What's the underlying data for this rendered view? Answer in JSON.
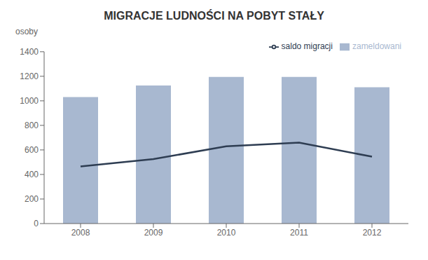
{
  "chart_data": {
    "type": "bar",
    "title": "MIGRACJE LUDNOŚCI NA POBYT STAŁY",
    "ylabel": "osoby",
    "categories": [
      "2008",
      "2009",
      "2010",
      "2011",
      "2012"
    ],
    "series": [
      {
        "name": "zameldowani",
        "type": "bar",
        "color": "#a8b8d0",
        "values": [
          1030,
          1125,
          1195,
          1195,
          1110
        ]
      },
      {
        "name": "saldo migracji",
        "type": "line",
        "color": "#2e3d52",
        "values": [
          465,
          525,
          630,
          660,
          545
        ]
      }
    ],
    "ylim": [
      0,
      1400
    ],
    "yticks": [
      0,
      200,
      400,
      600,
      800,
      1000,
      1200,
      1400
    ],
    "grid": false,
    "legend": "upper right"
  }
}
